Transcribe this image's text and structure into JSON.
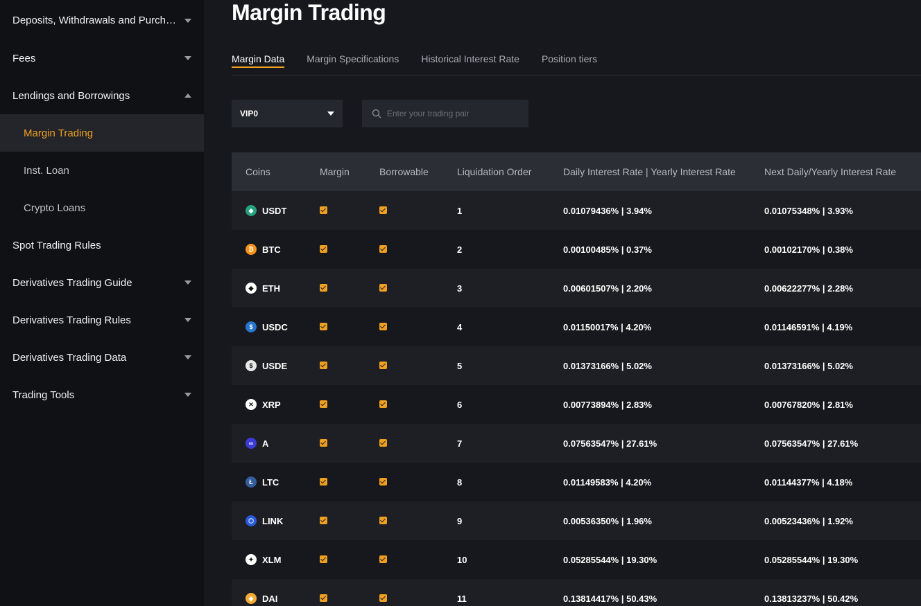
{
  "sidebar": {
    "items": [
      {
        "label": "Deposits, Withdrawals and Purcha...",
        "caret": "down"
      },
      {
        "label": "Fees",
        "caret": "down"
      },
      {
        "label": "Lendings and Borrowings",
        "caret": "up"
      },
      {
        "label": "Margin Trading",
        "sub": true,
        "active": true
      },
      {
        "label": "Inst. Loan",
        "sub": true
      },
      {
        "label": "Crypto Loans",
        "sub": true
      },
      {
        "label": "Spot Trading Rules"
      },
      {
        "label": "Derivatives Trading Guide",
        "caret": "down"
      },
      {
        "label": "Derivatives Trading Rules",
        "caret": "down"
      },
      {
        "label": "Derivatives Trading Data",
        "caret": "down"
      },
      {
        "label": "Trading Tools",
        "caret": "down"
      }
    ]
  },
  "page": {
    "title": "Margin Trading",
    "accent_color": "#f0a020"
  },
  "tabs": [
    {
      "label": "Margin Data",
      "active": true
    },
    {
      "label": "Margin Specifications"
    },
    {
      "label": "Historical Interest Rate"
    },
    {
      "label": "Position tiers"
    }
  ],
  "filters": {
    "vip_level": "VIP0",
    "search_placeholder": "Enter your trading pair"
  },
  "table": {
    "headers": {
      "coins": "Coins",
      "margin": "Margin",
      "borrowable": "Borrowable",
      "liquidation_order": "Liquidation Order",
      "daily_yearly": "Daily Interest Rate | Yearly Interest Rate",
      "next_rate": "Next Daily/Yearly Interest Rate"
    },
    "rows": [
      {
        "coin": "USDT",
        "icon": "usdt-icon",
        "icon_color": "#26a17b",
        "margin": true,
        "borrowable": true,
        "order": "1",
        "rate": "0.01079436% | 3.94%",
        "next_rate": "0.01075348% | 3.93%"
      },
      {
        "coin": "BTC",
        "icon": "btc-icon",
        "icon_color": "#f7931a",
        "margin": true,
        "borrowable": true,
        "order": "2",
        "rate": "0.00100485% | 0.37%",
        "next_rate": "0.00102170% | 0.38%"
      },
      {
        "coin": "ETH",
        "icon": "eth-icon",
        "icon_color": "#ffffff",
        "margin": true,
        "borrowable": true,
        "order": "3",
        "rate": "0.00601507% | 2.20%",
        "next_rate": "0.00622277% | 2.28%"
      },
      {
        "coin": "USDC",
        "icon": "usdc-icon",
        "icon_color": "#2775ca",
        "margin": true,
        "borrowable": true,
        "order": "4",
        "rate": "0.01150017% | 4.20%",
        "next_rate": "0.01146591% | 4.19%"
      },
      {
        "coin": "USDE",
        "icon": "usde-icon",
        "icon_color": "#e8e8e8",
        "margin": true,
        "borrowable": true,
        "order": "5",
        "rate": "0.01373166% | 5.02%",
        "next_rate": "0.01373166% | 5.02%"
      },
      {
        "coin": "XRP",
        "icon": "xrp-icon",
        "icon_color": "#ffffff",
        "margin": true,
        "borrowable": true,
        "order": "6",
        "rate": "0.00773894% | 2.83%",
        "next_rate": "0.00767820% | 2.81%"
      },
      {
        "coin": "A",
        "icon": "a-icon",
        "icon_color": "#3b3bd6",
        "margin": true,
        "borrowable": true,
        "order": "7",
        "rate": "0.07563547% | 27.61%",
        "next_rate": "0.07563547% | 27.61%"
      },
      {
        "coin": "LTC",
        "icon": "ltc-icon",
        "icon_color": "#345d9d",
        "margin": true,
        "borrowable": true,
        "order": "8",
        "rate": "0.01149583% | 4.20%",
        "next_rate": "0.01144377% | 4.18%"
      },
      {
        "coin": "LINK",
        "icon": "link-icon",
        "icon_color": "#2a5ada",
        "margin": true,
        "borrowable": true,
        "order": "9",
        "rate": "0.00536350% | 1.96%",
        "next_rate": "0.00523436% | 1.92%"
      },
      {
        "coin": "XLM",
        "icon": "xlm-icon",
        "icon_color": "#ffffff",
        "margin": true,
        "borrowable": true,
        "order": "10",
        "rate": "0.05285544% | 19.30%",
        "next_rate": "0.05285544% | 19.30%"
      },
      {
        "coin": "DAI",
        "icon": "dai-icon",
        "icon_color": "#f5ac37",
        "margin": true,
        "borrowable": true,
        "order": "11",
        "rate": "0.13814417% | 50.43%",
        "next_rate": "0.13813237% | 50.42%"
      }
    ]
  }
}
